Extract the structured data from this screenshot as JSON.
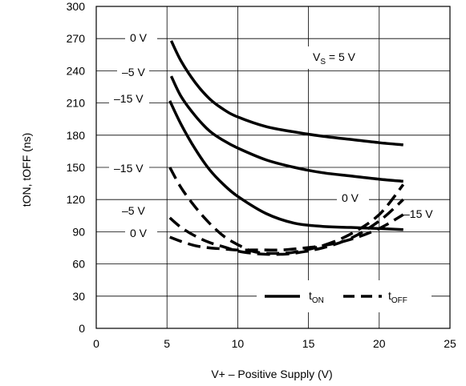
{
  "chart_data": {
    "type": "line",
    "xlabel": "V+ – Positive Supply (V)",
    "ylabel_parts": {
      "t": "t",
      "on": "ON",
      "sep": ", t",
      "off": "OFF",
      "unit": " (ns)"
    },
    "xlim": [
      0,
      25
    ],
    "ylim": [
      0,
      300
    ],
    "xticks": [
      "0",
      "5",
      "10",
      "15",
      "20",
      "25"
    ],
    "yticks": [
      "0",
      "30",
      "60",
      "90",
      "120",
      "150",
      "180",
      "210",
      "240",
      "270",
      "300"
    ],
    "grid": true,
    "annotation": {
      "main": "V",
      "sub": "S",
      "rest": " = 5 V"
    },
    "legend": {
      "position": "bottom-right",
      "entries": [
        {
          "style": "solid",
          "main": "t",
          "sub": "ON"
        },
        {
          "style": "dashed",
          "main": "t",
          "sub": "OFF"
        }
      ]
    },
    "series": [
      {
        "label": "0 V",
        "kind": "t_on",
        "style": "solid",
        "x": [
          5.3,
          6,
          7,
          8,
          9,
          10,
          12,
          14,
          16,
          18,
          20,
          21.7
        ],
        "y": [
          268,
          249,
          229,
          214,
          204,
          197,
          188,
          183,
          179,
          176,
          173,
          171
        ]
      },
      {
        "label": "–5 V",
        "kind": "t_on",
        "style": "solid",
        "x": [
          5.3,
          6,
          7,
          8,
          9,
          10,
          12,
          14,
          16,
          18,
          20,
          21.7
        ],
        "y": [
          235,
          216,
          198,
          184,
          175,
          168,
          157,
          150,
          145,
          142,
          139,
          137
        ]
      },
      {
        "label": "–15 V",
        "kind": "t_on",
        "style": "solid",
        "x": [
          5.2,
          6,
          7,
          8,
          9,
          10,
          12,
          14,
          16,
          18,
          20,
          21.7
        ],
        "y": [
          212,
          190,
          167,
          148,
          134,
          123,
          107,
          98,
          95,
          94,
          93,
          92
        ]
      },
      {
        "label": "–15 V",
        "kind": "t_off",
        "style": "dashed",
        "x": [
          5.2,
          6,
          7,
          8,
          9,
          10,
          11,
          12,
          13,
          14,
          16,
          18,
          20,
          21.7
        ],
        "y": [
          150,
          131,
          113,
          98,
          86,
          78,
          72,
          70,
          70,
          71,
          77,
          88,
          106,
          134
        ]
      },
      {
        "label": "–5 V",
        "kind": "t_off",
        "style": "dashed",
        "x": [
          5.2,
          6,
          7,
          8,
          9,
          10,
          11,
          12,
          13,
          14,
          16,
          18,
          20,
          21.7
        ],
        "y": [
          103,
          94,
          86,
          80,
          76,
          72,
          70,
          69,
          69,
          70,
          75,
          84,
          100,
          120
        ]
      },
      {
        "label": "0 V",
        "kind": "t_off",
        "style": "dashed",
        "x": [
          5.2,
          6,
          7,
          8,
          9,
          10,
          11,
          12,
          13,
          14,
          16,
          18,
          20,
          21.7
        ],
        "y": [
          85,
          81,
          77,
          75,
          74,
          73,
          73,
          73,
          73,
          74,
          77,
          83,
          93,
          106
        ]
      }
    ],
    "curve_labels": [
      "0 V",
      "–5 V",
      "–15 V",
      "–15 V",
      "–5 V",
      "0 V",
      "0 V",
      "–15 V"
    ]
  }
}
